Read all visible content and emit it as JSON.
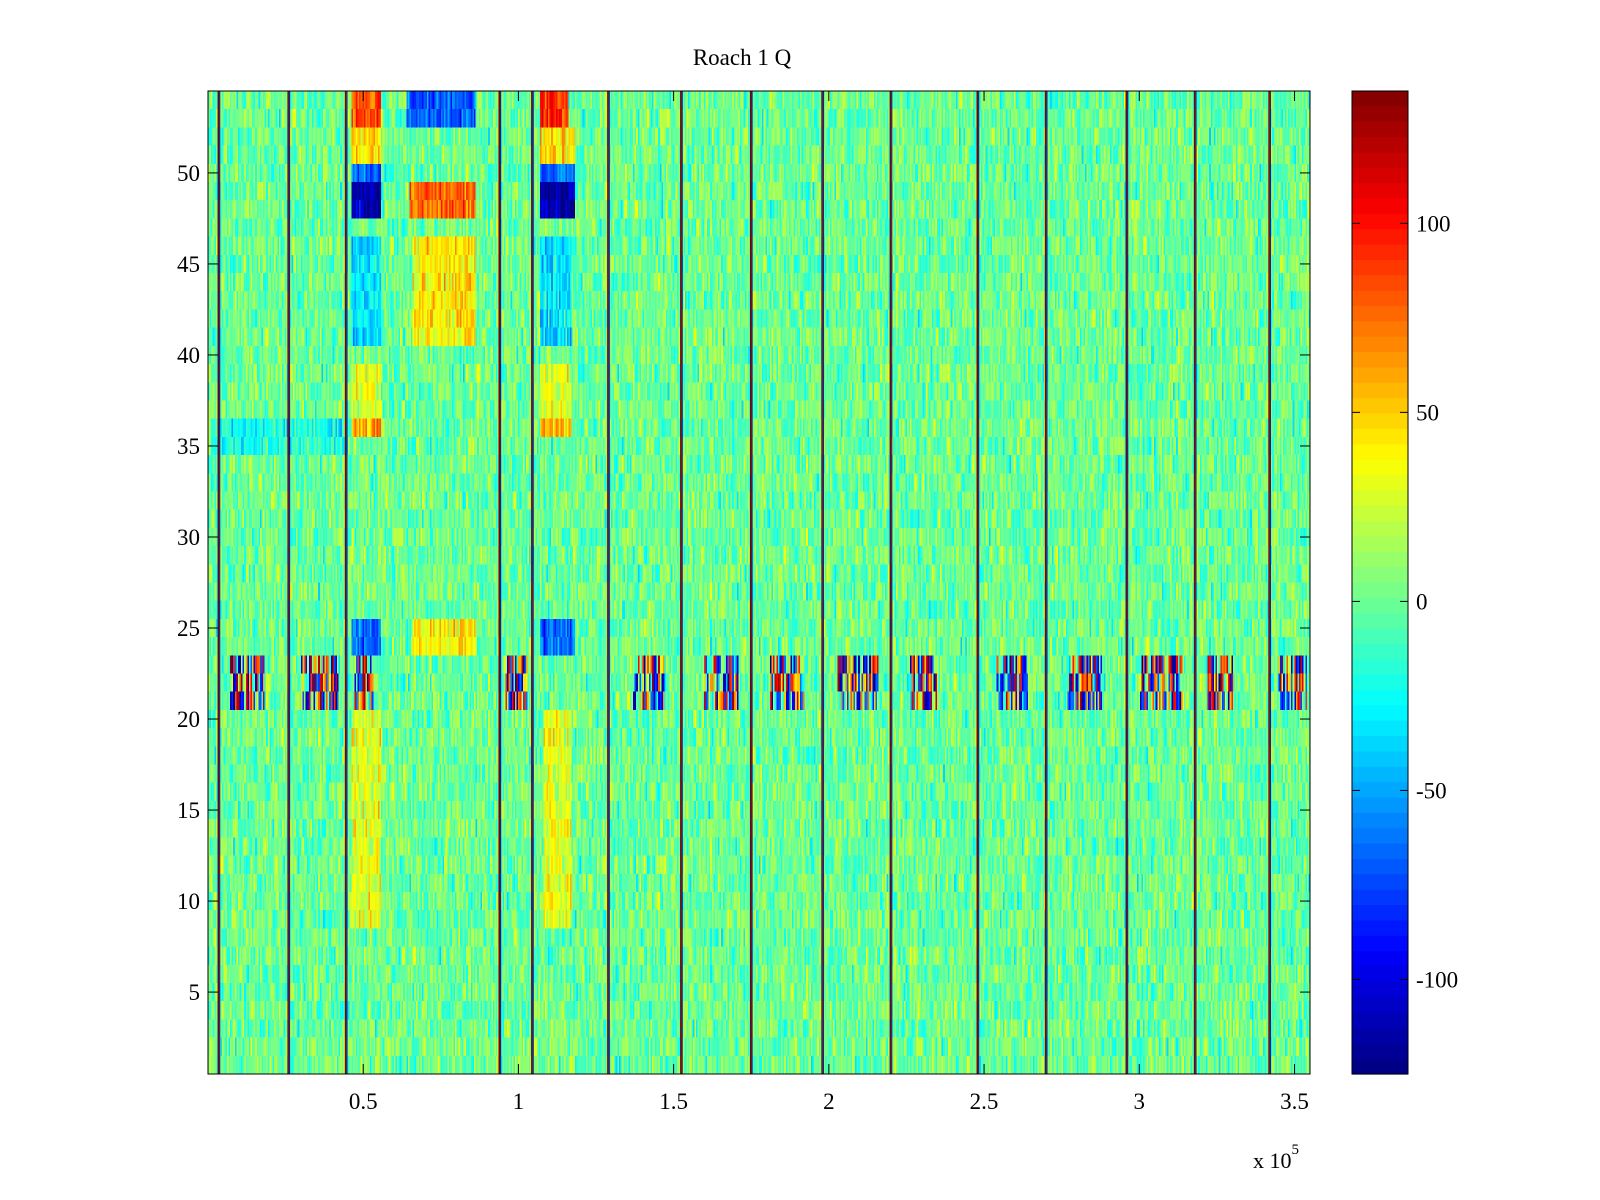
{
  "chart_data": {
    "type": "heatmap",
    "title": "Roach 1 Q",
    "xlabel": "",
    "ylabel": "",
    "x_range": [
      1,
      355000
    ],
    "y_range": [
      0.5,
      54.5
    ],
    "x_ticks": [
      50000,
      100000,
      150000,
      200000,
      250000,
      300000,
      350000
    ],
    "x_tick_labels": [
      "0.5",
      "1",
      "1.5",
      "2",
      "2.5",
      "3",
      "3.5"
    ],
    "x_multiplier_label": "x 10",
    "x_multiplier_exponent": "5",
    "y_ticks": [
      5,
      10,
      15,
      20,
      25,
      30,
      35,
      40,
      45,
      50
    ],
    "y_tick_labels": [
      "5",
      "10",
      "15",
      "20",
      "25",
      "30",
      "35",
      "40",
      "45",
      "50"
    ],
    "rows": 54,
    "grid": false,
    "colormap": "jet",
    "color_range": [
      -125,
      135
    ],
    "colorbar_ticks": [
      -100,
      -50,
      0,
      50,
      100
    ],
    "colorbar_tick_labels": [
      "-100",
      "-50",
      "0",
      "50",
      "100"
    ],
    "colorbar_placement": "right",
    "background_value": 0,
    "noise_amplitude": 22,
    "column_bins": 700,
    "vertical_lines": [
      3500,
      26000,
      44500,
      94000,
      104500,
      129000,
      152500,
      175000,
      198000,
      220000,
      248000,
      270000,
      296000,
      318000,
      342000
    ],
    "vertical_line_colors": [
      "#800000",
      "#00008f"
    ],
    "burst_rows": [
      21,
      22,
      23
    ],
    "burst_segments": [
      [
        7000,
        18500
      ],
      [
        30000,
        42000
      ],
      [
        47000,
        53000
      ],
      [
        96000,
        103000
      ],
      [
        137000,
        147000
      ],
      [
        160000,
        171000
      ],
      [
        181000,
        192000
      ],
      [
        203000,
        216000
      ],
      [
        226000,
        235000
      ],
      [
        254000,
        264000
      ],
      [
        277000,
        288000
      ],
      [
        300000,
        314000
      ],
      [
        322000,
        330000
      ],
      [
        345000,
        354000
      ]
    ],
    "blocks": [
      {
        "x": [
          46000,
          56000
        ],
        "y": [
          47.5,
          49.5
        ],
        "value": -115
      },
      {
        "x": [
          107000,
          118000
        ],
        "y": [
          47.5,
          49.5
        ],
        "value": -115
      },
      {
        "x": [
          46000,
          56000
        ],
        "y": [
          49.5,
          50.5
        ],
        "value": -65
      },
      {
        "x": [
          107000,
          118000
        ],
        "y": [
          49.5,
          50.5
        ],
        "value": -65
      },
      {
        "x": [
          46000,
          56000
        ],
        "y": [
          50.5,
          52.5
        ],
        "value": 45
      },
      {
        "x": [
          107000,
          118000
        ],
        "y": [
          50.5,
          52.5
        ],
        "value": 45
      },
      {
        "x": [
          46000,
          56000
        ],
        "y": [
          52.5,
          54.5
        ],
        "value": 85
      },
      {
        "x": [
          107000,
          116000
        ],
        "y": [
          52.5,
          54.5
        ],
        "value": 95
      },
      {
        "x": [
          64000,
          86000
        ],
        "y": [
          52.5,
          54.5
        ],
        "value": -70
      },
      {
        "x": [
          65000,
          86000
        ],
        "y": [
          47.5,
          49.5
        ],
        "value": 75
      },
      {
        "x": [
          66000,
          86000
        ],
        "y": [
          40.5,
          46.5
        ],
        "value": 42
      },
      {
        "x": [
          46000,
          56000
        ],
        "y": [
          40.5,
          46.5
        ],
        "value": -32
      },
      {
        "x": [
          107000,
          117000
        ],
        "y": [
          40.5,
          46.5
        ],
        "value": -32
      },
      {
        "x": [
          46000,
          56000
        ],
        "y": [
          35.5,
          36.5
        ],
        "value": 60
      },
      {
        "x": [
          107000,
          117000
        ],
        "y": [
          35.5,
          36.5
        ],
        "value": 60
      },
      {
        "x": [
          46000,
          56000
        ],
        "y": [
          36.5,
          39.5
        ],
        "value": 30
      },
      {
        "x": [
          107000,
          117000
        ],
        "y": [
          36.5,
          39.5
        ],
        "value": 30
      },
      {
        "x": [
          1000,
          45000
        ],
        "y": [
          34.5,
          36.5
        ],
        "value": -20
      },
      {
        "x": [
          46000,
          56000
        ],
        "y": [
          23.5,
          25.5
        ],
        "value": -65
      },
      {
        "x": [
          107000,
          118000
        ],
        "y": [
          23.5,
          25.5
        ],
        "value": -65
      },
      {
        "x": [
          66000,
          86000
        ],
        "y": [
          23.5,
          25.5
        ],
        "value": 40
      },
      {
        "x": [
          46000,
          56000
        ],
        "y": [
          8.5,
          20.5
        ],
        "value": 32
      },
      {
        "x": [
          108000,
          117000
        ],
        "y": [
          8.5,
          20.5
        ],
        "value": 32
      }
    ]
  }
}
